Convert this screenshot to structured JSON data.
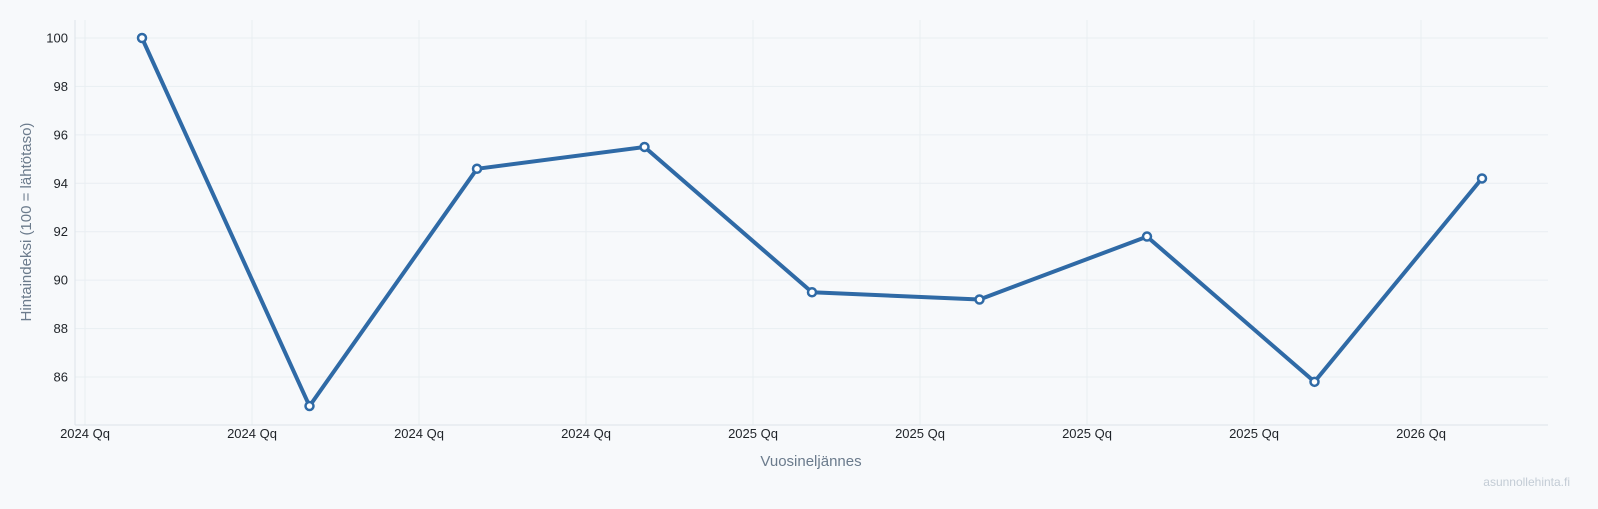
{
  "chart_data": {
    "type": "line",
    "title": "",
    "xlabel": "Vuosineljännes",
    "ylabel": "Hintaindeksi (100 = lähtötaso)",
    "x_ticks": [
      "2024 Qq",
      "2024 Qq",
      "2024 Qq",
      "2024 Qq",
      "2025 Qq",
      "2025 Qq",
      "2025 Qq",
      "2025 Qq",
      "2026 Qq"
    ],
    "y_ticks": [
      86,
      88,
      90,
      92,
      94,
      96,
      98,
      100
    ],
    "ylim": [
      84.1,
      100.8
    ],
    "grid": true,
    "legend": "none",
    "colors": {
      "line": "#2f6aa6",
      "marker_fill": "#ffffff",
      "grid": "#e9eef2",
      "axis": "#dde4ea"
    },
    "series": [
      {
        "values": [
          100.0,
          84.8,
          94.6,
          95.5,
          89.5,
          89.2,
          91.8,
          85.8,
          94.2
        ]
      }
    ]
  },
  "watermark": "asunnollehinta.fi"
}
